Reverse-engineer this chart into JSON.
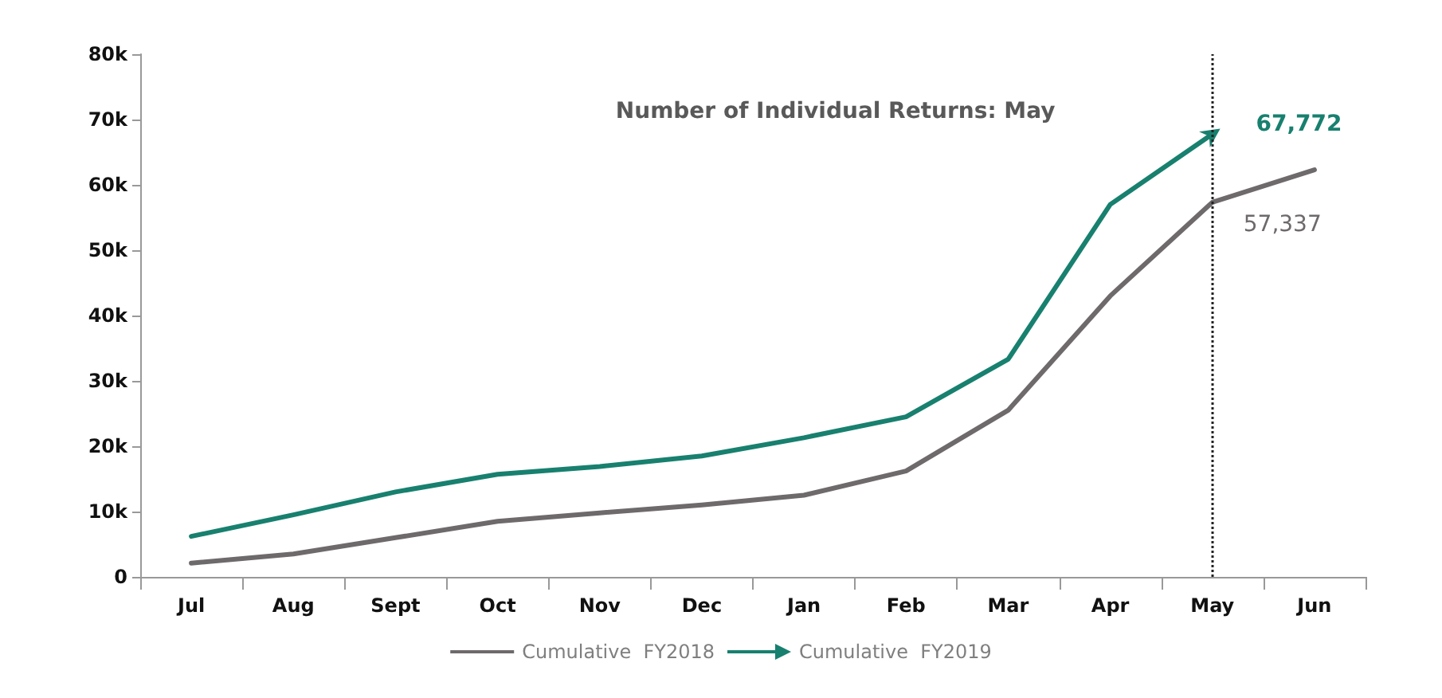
{
  "chart_data": {
    "type": "line",
    "title": "Number of Individual Returns: May",
    "categories": [
      "Jul",
      "Aug",
      "Sept",
      "Oct",
      "Nov",
      "Dec",
      "Jan",
      "Feb",
      "Mar",
      "Apr",
      "May",
      "Jun"
    ],
    "series": [
      {
        "name": "Cumulative  FY2018",
        "color": "#6e6a6b",
        "values": [
          2100,
          3500,
          6000,
          8500,
          9800,
          11000,
          12500,
          16200,
          25500,
          43000,
          57337,
          62300
        ],
        "value_labels": [
          null,
          null,
          null,
          null,
          null,
          null,
          null,
          null,
          null,
          null,
          "57,337",
          null
        ]
      },
      {
        "name": "Cumulative  FY2019",
        "color": "#18806f",
        "values": [
          6200,
          9500,
          13000,
          15700,
          16900,
          18500,
          21300,
          24500,
          33300,
          57000,
          67772,
          null
        ],
        "value_labels": [
          null,
          null,
          null,
          null,
          null,
          null,
          null,
          null,
          null,
          null,
          "67,772",
          null
        ]
      }
    ],
    "ylim": [
      0,
      80000
    ],
    "yticks": [
      0,
      {
        "value": 10000,
        "label": "10k"
      },
      {
        "value": 20000,
        "label": "20k"
      },
      {
        "value": 30000,
        "label": "30k"
      },
      {
        "value": 40000,
        "label": "40k"
      },
      {
        "value": 50000,
        "label": "50k"
      },
      {
        "value": 60000,
        "label": "60k"
      },
      {
        "value": 70000,
        "label": "70k"
      },
      {
        "value": 80000,
        "label": "80k"
      }
    ],
    "ref_lines": [
      {
        "axis": "x",
        "value": "May",
        "line_style": "dotted",
        "color": "#222222"
      }
    ],
    "grid": false,
    "legend": "bottom",
    "marker": "none",
    "line_style": "solid"
  }
}
